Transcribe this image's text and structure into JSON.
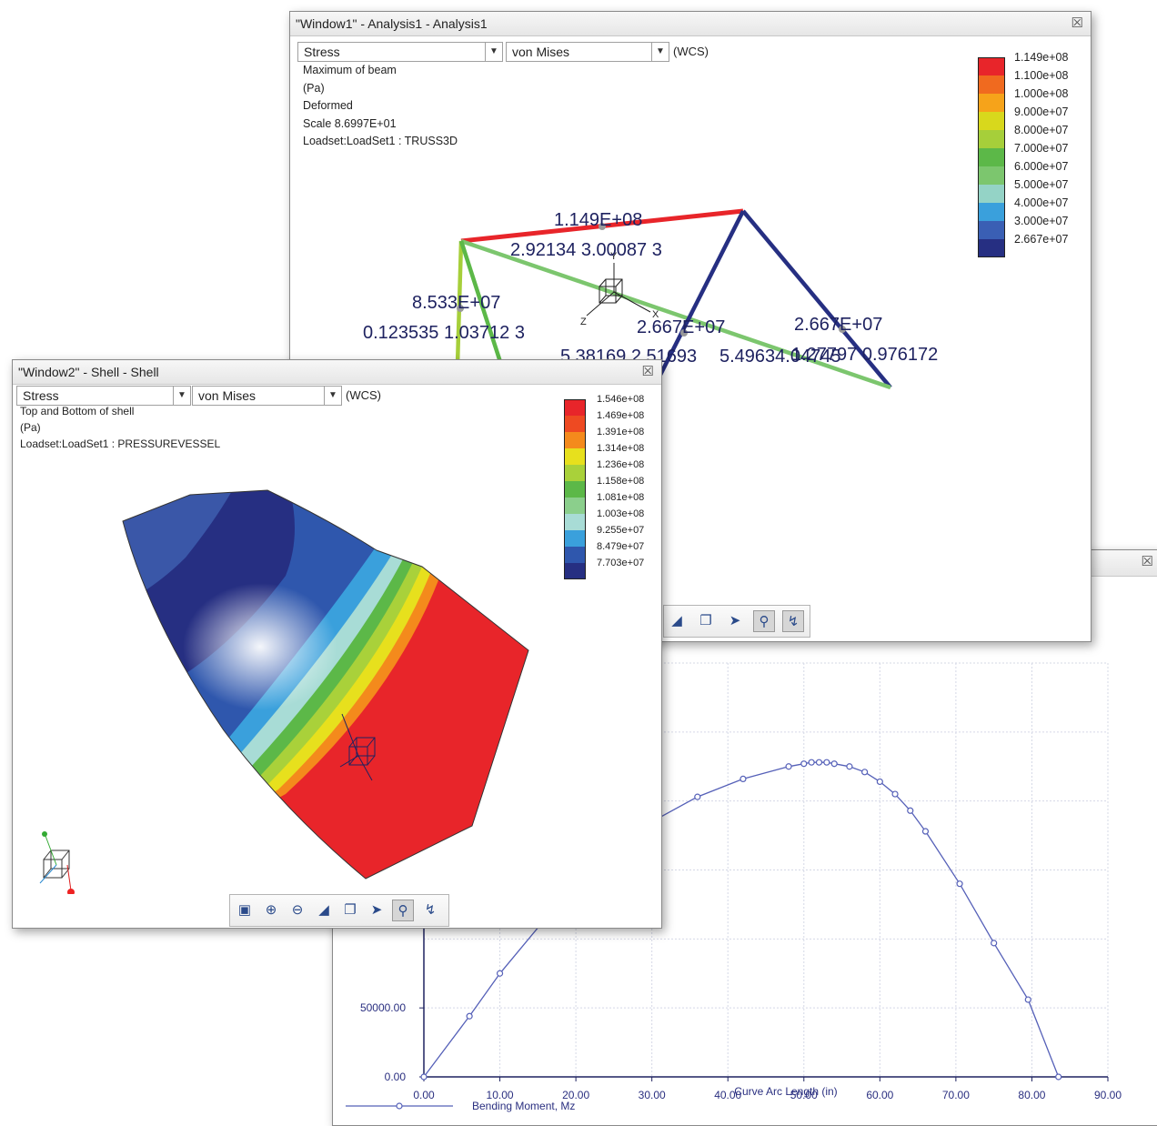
{
  "window1": {
    "title": "\"Window1\" - Analysis1 - Analysis1",
    "close_icon": "close-icon",
    "quantity_select": "Stress",
    "component_select": "von Mises",
    "csys": "(WCS)",
    "info": [
      "Maximum of beam",
      "(Pa)",
      "Deformed",
      "Scale  8.6997E+01",
      "Loadset:LoadSet1 :  TRUSS3D"
    ],
    "legend": [
      {
        "label": "1.149e+08",
        "color": "#e8252a"
      },
      {
        "label": "1.100e+08",
        "color": "#f06a1f"
      },
      {
        "label": "1.000e+08",
        "color": "#f6a31a"
      },
      {
        "label": "9.000e+07",
        "color": "#d8d81c"
      },
      {
        "label": "8.000e+07",
        "color": "#a6cf3a"
      },
      {
        "label": "7.000e+07",
        "color": "#5cb848"
      },
      {
        "label": "6.000e+07",
        "color": "#7cc66e"
      },
      {
        "label": "5.000e+07",
        "color": "#94d3c6"
      },
      {
        "label": "4.000e+07",
        "color": "#3aa0dc"
      },
      {
        "label": "3.000e+07",
        "color": "#3a5fb4"
      },
      {
        "label": "2.667e+07",
        "color": "#262f82"
      }
    ],
    "annotations": {
      "top_max": "1.149E+08",
      "top_coords": "2.92134  3.00087  3",
      "left_val": "8.533E+07",
      "left_coords": "0.123535  1.03712  3",
      "mid_val": "2.667E+07",
      "mid_coords": "5.38169  2.51693",
      "right_val": "2.667E+07",
      "right_coords": "5.49634.04745",
      "right_coords2": "1.27797  0.976172"
    },
    "triad": {
      "y": "Y",
      "x": "X",
      "z": "Z"
    }
  },
  "window2": {
    "title": "\"Window2\" - Shell - Shell",
    "close_icon": "close-icon",
    "quantity_select": "Stress",
    "component_select": "von Mises",
    "csys": "(WCS)",
    "info": [
      "Top and Bottom of shell",
      "(Pa)",
      "Loadset:LoadSet1 :  PRESSUREVESSEL"
    ],
    "legend": [
      {
        "label": "1.546e+08",
        "color": "#e8252a"
      },
      {
        "label": "1.469e+08",
        "color": "#ee4a22"
      },
      {
        "label": "1.391e+08",
        "color": "#f48a1c"
      },
      {
        "label": "1.314e+08",
        "color": "#e7e01d"
      },
      {
        "label": "1.236e+08",
        "color": "#a9d13a"
      },
      {
        "label": "1.158e+08",
        "color": "#5cb848"
      },
      {
        "label": "1.081e+08",
        "color": "#8bcf8c"
      },
      {
        "label": "1.003e+08",
        "color": "#a8dcd6"
      },
      {
        "label": "9.255e+07",
        "color": "#3aa0dc"
      },
      {
        "label": "8.479e+07",
        "color": "#2f57ad"
      },
      {
        "label": "7.703e+07",
        "color": "#262f82"
      }
    ]
  },
  "window3": {
    "close_icon": "close-icon"
  },
  "toolbar": {
    "icons": [
      "zoom-fit-icon",
      "zoom-in-icon",
      "zoom-out-icon",
      "pan-icon",
      "copy-icon",
      "dynamic-query-icon",
      "probe-icon",
      "info-icon"
    ]
  },
  "chart_data": {
    "type": "line",
    "title": "",
    "xlabel": "Curve Arc Length (in)",
    "ylabel": "",
    "xlim": [
      0,
      90
    ],
    "ylim": [
      0,
      300000
    ],
    "x_ticks": [
      "0.00",
      "10.00",
      "20.00",
      "30.00",
      "40.00",
      "50.00",
      "60.00",
      "70.00",
      "80.00",
      "90.00"
    ],
    "y_ticks": [
      "0.00",
      "50000.00"
    ],
    "grid": true,
    "legend": "bottom-left",
    "series": [
      {
        "name": "Bending Moment, Mz",
        "color": "#5560b8",
        "x": [
          0,
          6,
          10,
          18,
          25,
          30,
          36,
          42,
          48,
          50,
          51,
          52,
          53,
          54,
          56,
          58,
          60,
          62,
          64,
          66,
          70.5,
          75,
          79.5,
          83.5
        ],
        "y": [
          0,
          44000,
          75000,
          128000,
          167000,
          185000,
          203000,
          216000,
          225000,
          227000,
          228000,
          228000,
          228000,
          227000,
          225000,
          221000,
          214000,
          205000,
          193000,
          178000,
          140000,
          97000,
          56000,
          0
        ]
      }
    ]
  }
}
